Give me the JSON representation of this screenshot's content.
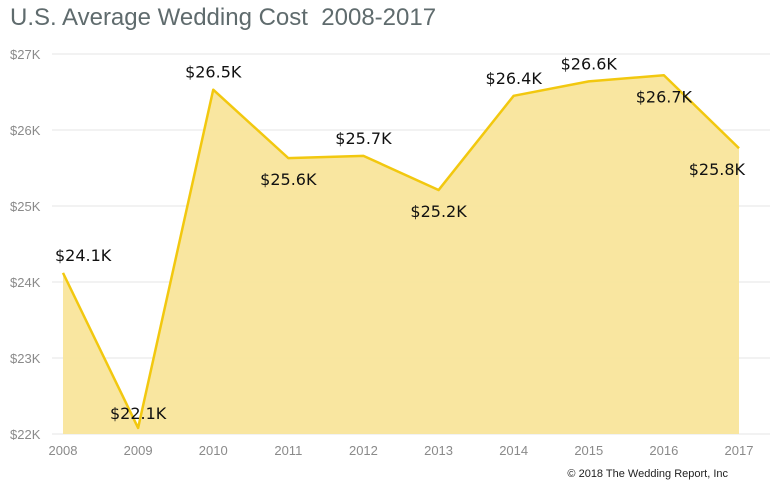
{
  "chart_data": {
    "type": "area",
    "title": "U.S. Average Wedding Cost  2008-2017",
    "x": [
      "2008",
      "2009",
      "2010",
      "2011",
      "2012",
      "2013",
      "2014",
      "2015",
      "2016",
      "2017"
    ],
    "values": [
      24.12,
      22.08,
      26.53,
      25.63,
      25.66,
      25.21,
      26.45,
      26.64,
      26.72,
      25.76
    ],
    "data_labels": [
      "$24.1K",
      "$22.1K",
      "$26.5K",
      "$25.6K",
      "$25.7K",
      "$25.2K",
      "$26.4K",
      "$26.6K",
      "$26.7K",
      "$25.8K"
    ],
    "y_ticks": [
      "$22K",
      "$23K",
      "$24K",
      "$25K",
      "$26K",
      "$27K"
    ],
    "ylim": [
      22,
      27
    ],
    "y_unit": "thousands USD",
    "grid": true,
    "colors": {
      "line": "#F2C80F",
      "fill": "#F9E59B",
      "grid": "#e6e6e6"
    }
  },
  "footer": {
    "credit": "© 2018 The Wedding Report, Inc"
  }
}
